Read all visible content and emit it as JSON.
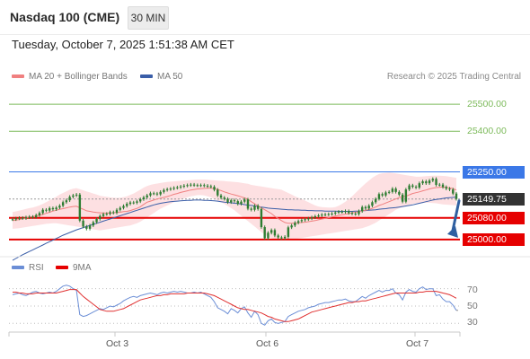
{
  "header": {
    "title": "Nasdaq 100 (CME)",
    "timeframe": "30 MIN",
    "datetime": "Tuesday, October 7, 2025 1:51:38 AM CET"
  },
  "legend": {
    "ma20_label": "MA 20 + Bollinger Bands",
    "ma50_label": "MA 50",
    "credit": "Research © 2025 Trading Central",
    "rsi_label": "RSI",
    "rsi_ma_label": "9MA"
  },
  "colors": {
    "ma20": "#f08080",
    "ma50": "#3a5ea8",
    "bollinger_fill": "#fde0e2",
    "candle": "#2e7d32",
    "resistance": "#7cba5a",
    "pivot": "#3b78e7",
    "support": "#e60000",
    "last": "#333333",
    "arrow": "#2f5fa0",
    "rsi": "#6b8ed6",
    "rsi_ma": "#e03030"
  },
  "chart_data": [
    {
      "type": "candlestick",
      "ylim": [
        24950,
        25560
      ],
      "x_ticks": [
        "Oct 3",
        "Oct 6",
        "Oct 7"
      ],
      "levels": [
        {
          "value": 25500,
          "label": "25500.00",
          "kind": "resistance"
        },
        {
          "value": 25400,
          "label": "25400.00",
          "kind": "resistance"
        },
        {
          "value": 25250,
          "label": "25250.00",
          "kind": "pivot"
        },
        {
          "value": 25149.75,
          "label": "25149.75",
          "kind": "last"
        },
        {
          "value": 25080,
          "label": "25080.00",
          "kind": "support"
        },
        {
          "value": 25000,
          "label": "25000.00",
          "kind": "support"
        }
      ],
      "close": [
        25075,
        25078,
        25080,
        25079,
        25082,
        25084,
        25083,
        25090,
        25098,
        25110,
        25107,
        25116,
        25112,
        25118,
        25125,
        25138,
        25145,
        25158,
        25163,
        25166,
        25070,
        25048,
        25040,
        25052,
        25064,
        25076,
        25087,
        25094,
        25095,
        25101,
        25099,
        25110,
        25117,
        25124,
        25132,
        25137,
        25136,
        25141,
        25149,
        25156,
        25163,
        25171,
        25170,
        25167,
        25176,
        25183,
        25186,
        25188,
        25191,
        25193,
        25196,
        25199,
        25201,
        25203,
        25201,
        25200,
        25201,
        25199,
        25197,
        25195,
        25184,
        25163,
        25155,
        25150,
        25138,
        25145,
        25142,
        25132,
        25140,
        25148,
        25114,
        25110,
        25125,
        25113,
        25046,
        25005,
        25025,
        25035,
        25015,
        25008,
        25005,
        25010,
        25045,
        25052,
        25062,
        25068,
        25072,
        25075,
        25078,
        25082,
        25086,
        25089,
        25092,
        25093,
        25094,
        25096,
        25100,
        25103,
        25102,
        25105,
        25098,
        25096,
        25094,
        25105,
        25120,
        25115,
        25125,
        25138,
        25150,
        25168,
        25163,
        25174,
        25176,
        25188,
        25176,
        25166,
        25140,
        25185,
        25200,
        25195,
        25192,
        25208,
        25215,
        25208,
        25218,
        25224,
        25202,
        25203,
        25194,
        25188,
        25185,
        25170,
        25150
      ],
      "ma20": [
        25070,
        25072,
        25074,
        25077,
        25080,
        25083,
        25085,
        25088,
        25090,
        25093,
        25097,
        25101,
        25105,
        25108,
        25112,
        25114,
        25117,
        25120,
        25122,
        25123,
        25117,
        25112,
        25106,
        25104,
        25102,
        25100,
        25099,
        25098,
        25098,
        25098,
        25099,
        25100,
        25101,
        25103,
        25104,
        25107,
        25111,
        25115,
        25121,
        25130,
        25138,
        25142,
        25146,
        25150,
        25153,
        25156,
        25159,
        25163,
        25167,
        25170,
        25174,
        25177,
        25180,
        25183,
        25185,
        25187,
        25188,
        25189,
        25190,
        25190,
        25188,
        25185,
        25181,
        25176,
        25172,
        25168,
        25165,
        25162,
        25158,
        25154,
        25149,
        25140,
        25132,
        25124,
        25117,
        25110,
        25103,
        25096,
        25086,
        25078,
        25070,
        25063,
        25060,
        25060,
        25061,
        25062,
        25063,
        25064,
        25066,
        25068,
        25070,
        25073,
        25076,
        25078,
        25081,
        25084,
        25087,
        25089,
        25092,
        25094,
        25096,
        25099,
        25101,
        25103,
        25106,
        25108,
        25111,
        25115,
        25120,
        25126,
        25130,
        25135,
        25140,
        25145,
        25150,
        25155,
        25158,
        25160,
        25165,
        25170,
        25173,
        25176,
        25180,
        25183,
        25187,
        25190,
        25192,
        25193,
        25194,
        25193,
        25191,
        25188,
        25183
      ],
      "ma50": [
        24923,
        24930,
        24937,
        24944,
        24950,
        24956,
        24962,
        24968,
        24974,
        24980,
        24986,
        24992,
        24998,
        25004,
        25010,
        25016,
        25021,
        25026,
        25031,
        25036,
        25040,
        25044,
        25048,
        25052,
        25056,
        25060,
        25064,
        25068,
        25072,
        25076,
        25080,
        25084,
        25088,
        25092,
        25096,
        25100,
        25104,
        25108,
        25112,
        25116,
        25120,
        25124,
        25128,
        25131,
        25134,
        25136,
        25138,
        25140,
        25141,
        25142,
        25143,
        25144,
        25145,
        25145,
        25146,
        25146,
        25146,
        25145,
        25145,
        25144,
        25143,
        25142,
        25140,
        25138,
        25137,
        25136,
        25134,
        25133,
        25131,
        25129,
        25127,
        25126,
        25124,
        25122,
        25120,
        25118,
        25116,
        25115,
        25114,
        25113,
        25112,
        25111,
        25110,
        25110,
        25109,
        25109,
        25108,
        25108,
        25107,
        25107,
        25106,
        25106,
        25106,
        25105,
        25105,
        25105,
        25105,
        25104,
        25104,
        25104,
        25104,
        25104,
        25105,
        25105,
        25106,
        25107,
        25108,
        25109,
        25110,
        25112,
        25113,
        25114,
        25116,
        25117,
        25118,
        25120,
        25122,
        25124,
        25126,
        25128,
        25131,
        25134,
        25137,
        25140,
        25143,
        25146,
        25148,
        25150,
        25152,
        25154,
        25155,
        25156,
        25157
      ],
      "bb_upper": [
        25102,
        25104,
        25107,
        25110,
        25113,
        25116,
        25118,
        25122,
        25126,
        25132,
        25138,
        25145,
        25152,
        25158,
        25166,
        25172,
        25178,
        25184,
        25188,
        25190,
        25186,
        25182,
        25178,
        25174,
        25170,
        25166,
        25162,
        25160,
        25158,
        25156,
        25155,
        25154,
        25155,
        25157,
        25160,
        25165,
        25170,
        25177,
        25184,
        25192,
        25198,
        25202,
        25205,
        25207,
        25209,
        25211,
        25213,
        25214,
        25215,
        25216,
        25217,
        25218,
        25219,
        25220,
        25221,
        25222,
        25222,
        25222,
        25221,
        25220,
        25219,
        25218,
        25217,
        25216,
        25215,
        25214,
        25213,
        25212,
        25210,
        25208,
        25206,
        25202,
        25200,
        25198,
        25196,
        25194,
        25192,
        25190,
        25188,
        25186,
        25184,
        25178,
        25172,
        25166,
        25160,
        25155,
        25150,
        25144,
        25138,
        25132,
        25126,
        25122,
        25120,
        25119,
        25118,
        25118,
        25120,
        25125,
        25132,
        25140,
        25150,
        25160,
        25172,
        25184,
        25196,
        25208,
        25218,
        25228,
        25236,
        25242,
        25245,
        25246,
        25247,
        25246,
        25244,
        25242,
        25240,
        25238,
        25236,
        25234,
        25232,
        25232,
        25233,
        25234,
        25235,
        25236,
        25236,
        25236,
        25235,
        25234,
        25232,
        25230,
        25228
      ],
      "bb_lower": [
        25040,
        25041,
        25042,
        25044,
        25046,
        25048,
        25050,
        25052,
        25054,
        25056,
        25058,
        25059,
        25060,
        25060,
        25058,
        25056,
        25054,
        25052,
        25050,
        25048,
        25046,
        25044,
        25042,
        25040,
        25038,
        25036,
        25034,
        25036,
        25038,
        25040,
        25042,
        25044,
        25046,
        25048,
        25050,
        25052,
        25056,
        25060,
        25066,
        25074,
        25082,
        25090,
        25098,
        25106,
        25114,
        25120,
        25126,
        25132,
        25138,
        25143,
        25148,
        25152,
        25156,
        25160,
        25162,
        25164,
        25164,
        25163,
        25160,
        25156,
        25150,
        25144,
        25138,
        25132,
        25124,
        25116,
        25108,
        25098,
        25088,
        25078,
        25068,
        25058,
        25048,
        25038,
        25028,
        25018,
        25010,
        25005,
        25001,
        24999,
        24998,
        24998,
        24999,
        25000,
        25002,
        25004,
        25006,
        25008,
        25010,
        25012,
        25014,
        25016,
        25018,
        25020,
        25022,
        25024,
        25026,
        25028,
        25030,
        25032,
        25034,
        25036,
        25038,
        25040,
        25042,
        25046,
        25050,
        25056,
        25062,
        25070,
        25078,
        25086,
        25094,
        25102,
        25110,
        25116,
        25120,
        25124,
        25128,
        25132,
        25134,
        25135,
        25136,
        25136,
        25136,
        25135,
        25134,
        25132,
        25130,
        25129,
        25128,
        25127,
        25126
      ]
    },
    {
      "type": "line",
      "name": "RSI",
      "ylim": [
        22,
        80
      ],
      "y_ticks": [
        "70",
        "50",
        "30"
      ],
      "rsi": [
        63,
        64,
        65,
        63,
        62,
        64,
        66,
        67,
        65,
        64,
        65,
        66,
        65,
        67,
        70,
        73,
        74,
        73,
        70,
        68,
        40,
        38,
        39,
        41,
        43,
        45,
        47,
        46,
        48,
        50,
        49,
        51,
        53,
        56,
        58,
        60,
        61,
        60,
        62,
        63,
        64,
        65,
        64,
        63,
        65,
        66,
        65,
        66,
        67,
        66,
        67,
        66,
        65,
        65,
        66,
        65,
        66,
        64,
        62,
        60,
        55,
        48,
        46,
        44,
        41,
        47,
        45,
        42,
        47,
        49,
        42,
        37,
        44,
        40,
        30,
        28,
        33,
        35,
        31,
        30,
        31,
        32,
        38,
        40,
        42,
        44,
        45,
        46,
        48,
        49,
        50,
        52,
        53,
        54,
        54,
        55,
        56,
        57,
        57,
        58,
        56,
        55,
        55,
        58,
        61,
        59,
        62,
        64,
        66,
        68,
        66,
        68,
        68,
        70,
        65,
        63,
        57,
        66,
        69,
        67,
        66,
        70,
        72,
        69,
        70,
        70,
        62,
        63,
        58,
        55,
        55,
        51,
        45
      ],
      "rsi_ma": [
        66,
        66,
        65,
        65,
        64,
        64,
        64,
        65,
        65,
        65,
        65,
        65,
        65,
        65,
        66,
        67,
        68,
        69,
        69,
        69,
        65,
        61,
        58,
        55,
        52,
        49,
        46,
        45,
        44,
        44,
        44,
        45,
        46,
        47,
        49,
        51,
        53,
        55,
        57,
        58,
        59,
        60,
        61,
        62,
        62,
        63,
        63,
        64,
        64,
        64,
        64,
        64,
        65,
        65,
        65,
        65,
        65,
        65,
        64,
        63,
        62,
        60,
        58,
        56,
        54,
        52,
        50,
        48,
        47,
        46,
        46,
        45,
        44,
        43,
        42,
        40,
        38,
        37,
        35,
        34,
        33,
        32,
        32,
        33,
        34,
        35,
        37,
        39,
        41,
        43,
        44,
        45,
        46,
        47,
        48,
        49,
        50,
        51,
        52,
        53,
        54,
        54,
        55,
        55,
        56,
        56,
        57,
        58,
        59,
        60,
        61,
        62,
        63,
        64,
        65,
        65,
        65,
        65,
        65,
        65,
        65,
        66,
        66,
        67,
        67,
        67,
        67,
        66,
        65,
        64,
        63,
        61,
        59
      ]
    }
  ]
}
